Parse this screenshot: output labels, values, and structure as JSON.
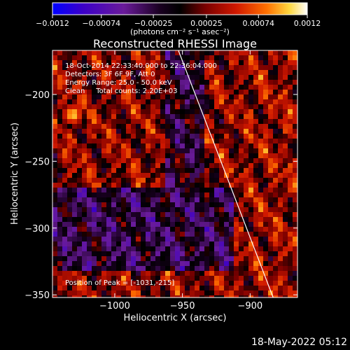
{
  "chart_data": {
    "type": "heatmap",
    "title": "Reconstructed RHESSI Image",
    "xlabel": "Heliocentric X (arcsec)",
    "ylabel": "Heliocentric Y (arcsec)",
    "xlim": [
      -1046,
      -865
    ],
    "ylim": [
      -352,
      -167
    ],
    "x_ticks": [
      -1000,
      -950,
      -900
    ],
    "x_tick_labels": [
      "−1000",
      "−950",
      "−900"
    ],
    "y_ticks": [
      -200,
      -250,
      -300,
      -350
    ],
    "y_tick_labels": [
      "−200",
      "−250",
      "−300",
      "−350"
    ],
    "colorbar": {
      "range": [
        -0.0012,
        0.0012
      ],
      "tick_values": [
        -0.0012,
        -0.00074,
        -0.00025,
        0.00025,
        0.00074,
        0.0012
      ],
      "tick_labels": [
        "−0.0012",
        "−0.00074",
        "−0.00025",
        "0.00025",
        "0.00074",
        "0.0012"
      ],
      "units_label": "(photons cm⁻² s⁻¹ asec⁻²)",
      "colors": [
        "#0000ff",
        "#3c00c8",
        "#6a1b9a",
        "#1a0022",
        "#7a0000",
        "#d01800",
        "#ff7000",
        "#ffd840",
        "#ffffff"
      ]
    },
    "annotations": [
      "18-Oct-2014 22:33:40.000 to 22:36:04.000",
      "Detectors: 3F 6F 9F, Att 0",
      "Energy Range: 25.0 - 50.0 keV",
      "Clean     Total counts: 2.20E+03"
    ],
    "peak_label": "Position of Peak = [-1031,-215]",
    "peak_position": [
      -1031,
      -215
    ],
    "limb_line": {
      "x": [
        -953,
        -883
      ],
      "y": [
        -167,
        -352
      ]
    }
  },
  "footer": {
    "timestamp": "18-May-2022 05:12"
  }
}
